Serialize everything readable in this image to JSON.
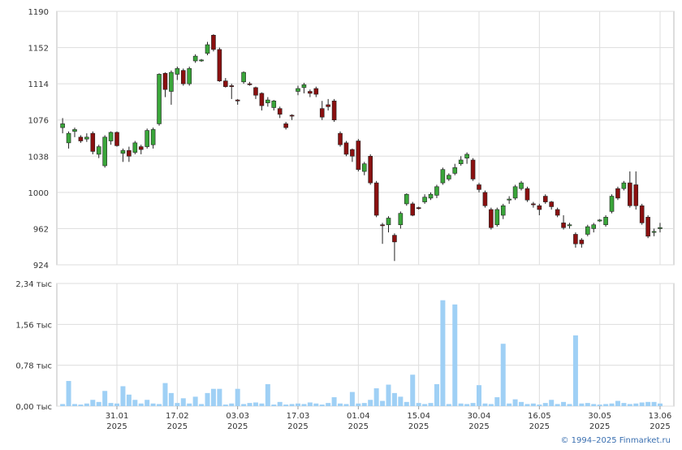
{
  "chart_data": {
    "type": "candlestick",
    "categories": [
      null,
      null,
      null,
      null,
      null,
      null,
      null,
      null,
      null,
      "31.01",
      null,
      null,
      null,
      null,
      null,
      null,
      null,
      null,
      null,
      "17.02",
      null,
      null,
      null,
      null,
      null,
      null,
      null,
      null,
      null,
      "03.03",
      null,
      null,
      null,
      null,
      null,
      null,
      null,
      null,
      null,
      "17.03",
      null,
      null,
      null,
      null,
      null,
      null,
      null,
      null,
      null,
      "01.04",
      null,
      null,
      null,
      null,
      null,
      null,
      null,
      null,
      null,
      "15.04",
      null,
      null,
      null,
      null,
      null,
      null,
      null,
      null,
      null,
      "30.04",
      null,
      null,
      null,
      null,
      null,
      null,
      null,
      null,
      null,
      "16.05",
      null,
      null,
      null,
      null,
      null,
      null,
      null,
      null,
      null,
      "30.05",
      null,
      null,
      null,
      null,
      null,
      null,
      null,
      null,
      null,
      "13.06"
    ],
    "year": "2025",
    "open": [
      1068,
      1052,
      1064,
      1058,
      1056,
      1062,
      1040,
      1028,
      1054,
      1063,
      1041,
      1044,
      1042,
      1048,
      1048,
      1050,
      1072,
      1125,
      1106,
      1124,
      1128,
      1114,
      1138,
      1138,
      1146,
      1165,
      1150,
      1117,
      1112,
      1097,
      1116,
      1114,
      1110,
      1104,
      1094,
      1089,
      1088,
      1072,
      1081,
      1106,
      1110,
      1106,
      1109,
      1088,
      1092,
      1096,
      1062,
      1052,
      1045,
      1054,
      1022,
      1038,
      1010,
      966,
      966,
      955,
      966,
      988,
      988,
      984,
      990,
      994,
      997,
      1010,
      1014,
      1020,
      1030,
      1036,
      1034,
      1008,
      1000,
      982,
      966,
      976,
      992,
      994,
      1004,
      1004,
      988,
      986,
      996,
      990,
      982,
      968,
      965,
      956,
      950,
      956,
      962,
      970,
      966,
      980,
      1004,
      1004,
      1010,
      1008,
      986,
      974,
      958,
      962
    ],
    "high": [
      1078,
      1064,
      1068,
      1060,
      1062,
      1064,
      1050,
      1060,
      1064,
      1064,
      1046,
      1048,
      1054,
      1050,
      1067,
      1068,
      1125,
      1126,
      1128,
      1132,
      1130,
      1132,
      1145,
      1140,
      1158,
      1166,
      1152,
      1120,
      1114,
      1098,
      1127,
      1116,
      1111,
      1105,
      1100,
      1097,
      1090,
      1074,
      1082,
      1112,
      1115,
      1108,
      1111,
      1096,
      1098,
      1098,
      1064,
      1054,
      1046,
      1056,
      1032,
      1040,
      1012,
      968,
      975,
      957,
      980,
      999,
      990,
      985,
      998,
      1000,
      1008,
      1026,
      1020,
      1030,
      1038,
      1042,
      1036,
      1010,
      1002,
      984,
      984,
      988,
      996,
      1008,
      1012,
      1006,
      990,
      988,
      998,
      991,
      984,
      976,
      968,
      958,
      952,
      966,
      968,
      972,
      976,
      998,
      1006,
      1012,
      1022,
      1022,
      988,
      976,
      962,
      968
    ],
    "low": [
      1062,
      1046,
      1058,
      1052,
      1053,
      1040,
      1036,
      1026,
      1050,
      1048,
      1032,
      1032,
      1040,
      1040,
      1046,
      1046,
      1070,
      1100,
      1092,
      1118,
      1112,
      1112,
      1136,
      1137,
      1144,
      1148,
      1116,
      1110,
      1098,
      1092,
      1114,
      1112,
      1098,
      1086,
      1090,
      1086,
      1078,
      1066,
      1076,
      1102,
      1104,
      1100,
      1100,
      1076,
      1086,
      1074,
      1048,
      1038,
      1032,
      1022,
      1018,
      1008,
      974,
      946,
      958,
      928,
      962,
      986,
      975,
      982,
      988,
      992,
      994,
      1008,
      1012,
      1018,
      1028,
      1030,
      1012,
      1000,
      984,
      961,
      964,
      972,
      988,
      992,
      1002,
      990,
      984,
      976,
      988,
      982,
      974,
      961,
      962,
      942,
      942,
      954,
      958,
      969,
      964,
      978,
      992,
      1002,
      984,
      982,
      966,
      952,
      954,
      958
    ],
    "close": [
      1072,
      1062,
      1066,
      1054,
      1058,
      1043,
      1048,
      1058,
      1063,
      1049,
      1044,
      1038,
      1052,
      1045,
      1065,
      1066,
      1124,
      1108,
      1126,
      1130,
      1114,
      1130,
      1143,
      1139,
      1155,
      1150,
      1117,
      1111,
      1111,
      1096,
      1126,
      1113,
      1102,
      1091,
      1097,
      1096,
      1082,
      1068,
      1080,
      1109,
      1113,
      1104,
      1103,
      1079,
      1090,
      1076,
      1050,
      1040,
      1038,
      1024,
      1030,
      1010,
      976,
      965,
      973,
      948,
      978,
      998,
      976,
      983,
      995,
      998,
      1006,
      1024,
      1018,
      1026,
      1034,
      1040,
      1014,
      1003,
      986,
      963,
      982,
      986,
      993,
      1006,
      1010,
      992,
      987,
      982,
      990,
      985,
      976,
      963,
      966,
      946,
      946,
      964,
      966,
      971,
      974,
      996,
      994,
      1010,
      986,
      986,
      968,
      954,
      959,
      963
    ],
    "volume": [
      0.04,
      0.48,
      0.04,
      0.03,
      0.05,
      0.12,
      0.08,
      0.29,
      0.06,
      0.05,
      0.38,
      0.22,
      0.12,
      0.05,
      0.12,
      0.05,
      0.04,
      0.44,
      0.25,
      0.06,
      0.15,
      0.05,
      0.18,
      0.04,
      0.25,
      0.33,
      0.33,
      0.03,
      0.05,
      0.33,
      0.04,
      0.06,
      0.07,
      0.05,
      0.42,
      0.03,
      0.08,
      0.03,
      0.04,
      0.05,
      0.04,
      0.07,
      0.05,
      0.03,
      0.06,
      0.17,
      0.05,
      0.04,
      0.27,
      0.05,
      0.06,
      0.12,
      0.34,
      0.1,
      0.41,
      0.25,
      0.18,
      0.08,
      0.6,
      0.06,
      0.04,
      0.06,
      0.42,
      2.02,
      0.04,
      1.94,
      0.05,
      0.04,
      0.06,
      0.4,
      0.05,
      0.04,
      0.17,
      1.19,
      0.05,
      0.13,
      0.08,
      0.04,
      0.05,
      0.03,
      0.06,
      0.12,
      0.04,
      0.08,
      0.04,
      1.35,
      0.05,
      0.06,
      0.04,
      0.03,
      0.04,
      0.05,
      0.1,
      0.06,
      0.04,
      0.05,
      0.07,
      0.08,
      0.08,
      0.05
    ],
    "up_color": "#3aa63a",
    "down_color": "#8b1010",
    "volume_color": "#9fd0f5",
    "ylim": [
      924,
      1190
    ],
    "yticks": [
      924,
      962,
      1000,
      1038,
      1076,
      1114,
      1152,
      1190
    ],
    "volume_ylim": [
      0,
      2.34
    ],
    "volume_yticks": [
      {
        "value": 0,
        "label": "0,00 тыс"
      },
      {
        "value": 0.78,
        "label": "0,78 тыс"
      },
      {
        "value": 1.56,
        "label": "1,56 тыс"
      },
      {
        "value": 2.34,
        "label": "2,34 тыс"
      }
    ],
    "grid": true,
    "copyright": "© 1994–2025 Finmarket.ru"
  }
}
